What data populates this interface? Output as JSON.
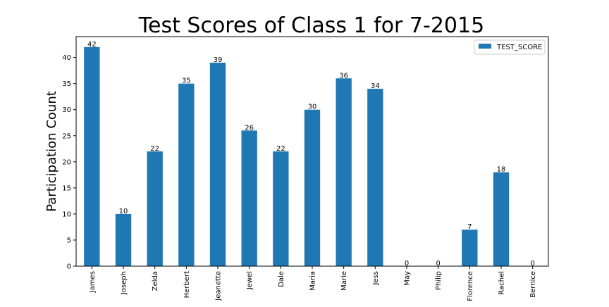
{
  "chart_data": {
    "type": "bar",
    "title": "Test Scores of Class 1 for 7-2015",
    "xlabel": "",
    "ylabel": "Participation Count",
    "categories": [
      "James",
      "Joseph",
      "Zelda",
      "Herbert",
      "Jeanette",
      "Jewel",
      "Dale",
      "Maria",
      "Marie",
      "Jess",
      "May",
      "Philip",
      "Florence",
      "Rachel",
      "Bernice"
    ],
    "series": [
      {
        "name": "TEST_SCORE",
        "values": [
          42,
          10,
          22,
          35,
          39,
          26,
          22,
          30,
          36,
          34,
          0,
          0,
          7,
          18,
          0
        ]
      }
    ],
    "ylim": [
      0,
      44
    ],
    "yticks": [
      0,
      5,
      10,
      15,
      20,
      25,
      30,
      35,
      40
    ],
    "grid": false,
    "legend": "top-right",
    "bar_color": "#1f77b4"
  }
}
